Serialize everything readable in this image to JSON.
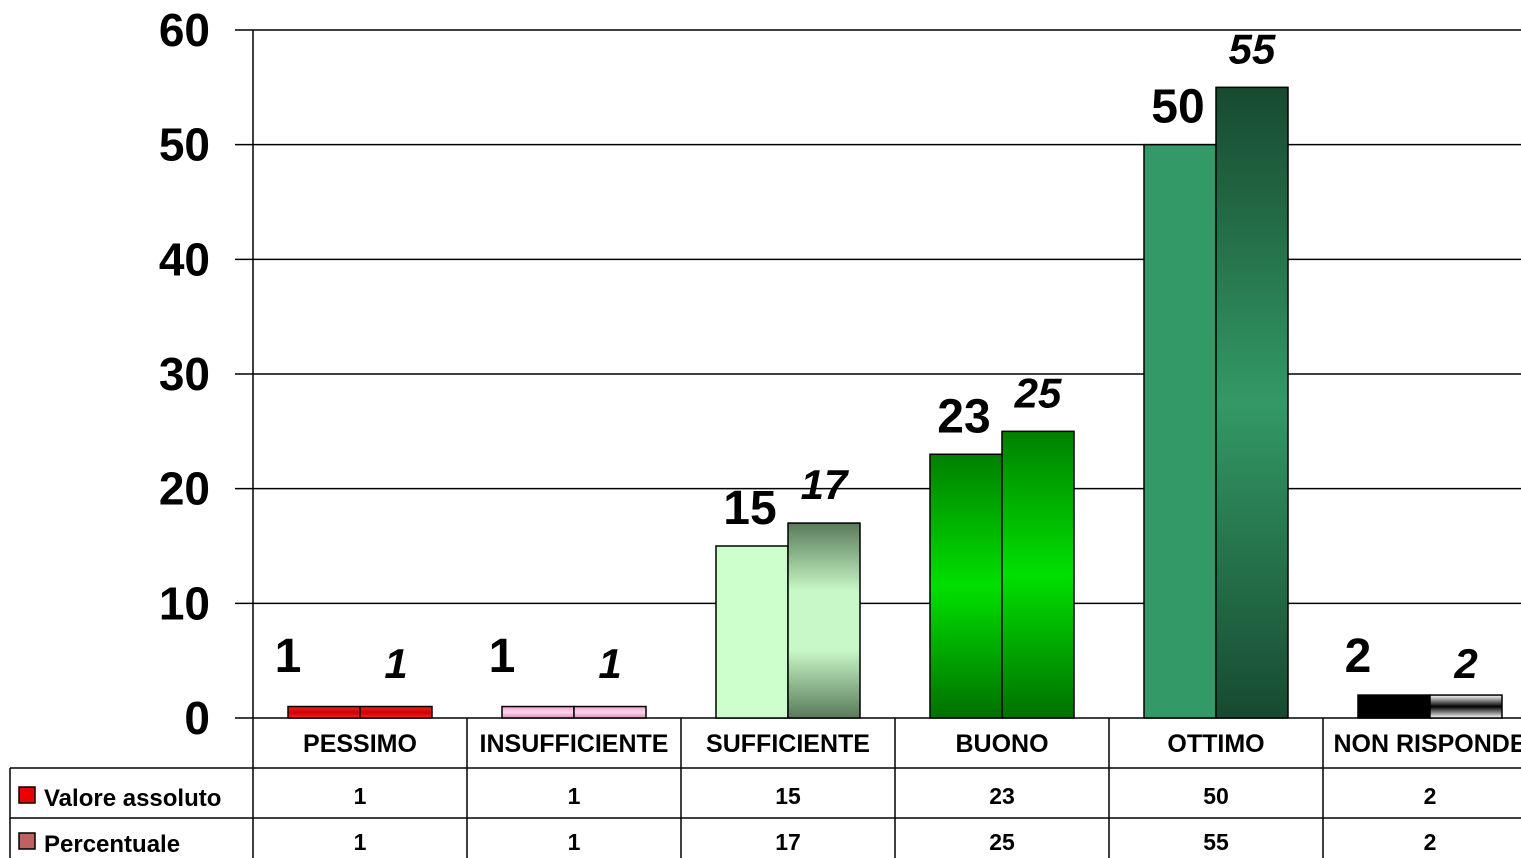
{
  "chart_data": {
    "type": "bar",
    "categories": [
      "PESSIMO",
      "INSUFFICIENTE",
      "SUFFICIENTE",
      "BUONO",
      "OTTIMO",
      "NON RISPONDE"
    ],
    "series": [
      {
        "name": "Valore assoluto",
        "values": [
          1,
          1,
          15,
          23,
          50,
          2
        ],
        "label_style": "bold"
      },
      {
        "name": "Percentuale",
        "values": [
          1,
          1,
          17,
          25,
          55,
          2
        ],
        "label_style": "bold-italic"
      }
    ],
    "ylim": [
      0,
      60
    ],
    "yticks": [
      0,
      10,
      20,
      30,
      40,
      50,
      60
    ],
    "grid": true,
    "legend": "data-table-below",
    "bar_colors": {
      "Valore assoluto": [
        "#ee0000",
        "#f5a3d6",
        "#ccffcc",
        "#00ee00",
        "#339966",
        "#000000"
      ],
      "Percentuale": [
        "#cc0000",
        "#e6a0c8",
        "#5e8a5e",
        "#00a000",
        "#1f5a3a",
        "#ffffff"
      ]
    },
    "legend_key_colors": {
      "Valore assoluto": "#ee0000",
      "Percentuale": "#c06060"
    }
  }
}
